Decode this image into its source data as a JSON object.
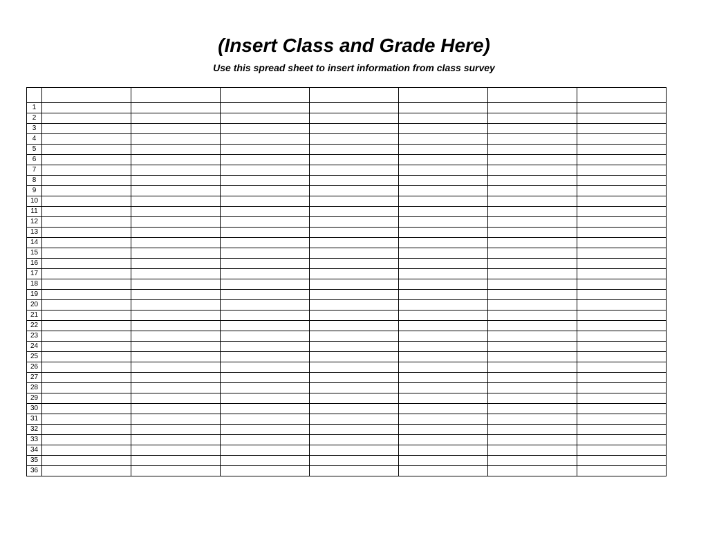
{
  "header": {
    "title": "(Insert Class and Grade Here)",
    "subtitle": "Use this spread sheet to insert information from class survey"
  },
  "table": {
    "type": "table",
    "num_columns": 7,
    "num_rows": 36,
    "header_row_height": 22,
    "data_row_height": 15,
    "num_col_width": 22,
    "data_col_width": 129,
    "border_color": "#000000",
    "background_color": "#ffffff",
    "text_color": "#000000",
    "row_number_fontsize": 10,
    "columns": [
      "",
      "",
      "",
      "",
      "",
      "",
      ""
    ],
    "rows": [
      {
        "num": 1,
        "cells": [
          "",
          "",
          "",
          "",
          "",
          "",
          ""
        ]
      },
      {
        "num": 2,
        "cells": [
          "",
          "",
          "",
          "",
          "",
          "",
          ""
        ]
      },
      {
        "num": 3,
        "cells": [
          "",
          "",
          "",
          "",
          "",
          "",
          ""
        ]
      },
      {
        "num": 4,
        "cells": [
          "",
          "",
          "",
          "",
          "",
          "",
          ""
        ]
      },
      {
        "num": 5,
        "cells": [
          "",
          "",
          "",
          "",
          "",
          "",
          ""
        ]
      },
      {
        "num": 6,
        "cells": [
          "",
          "",
          "",
          "",
          "",
          "",
          ""
        ]
      },
      {
        "num": 7,
        "cells": [
          "",
          "",
          "",
          "",
          "",
          "",
          ""
        ]
      },
      {
        "num": 8,
        "cells": [
          "",
          "",
          "",
          "",
          "",
          "",
          ""
        ]
      },
      {
        "num": 9,
        "cells": [
          "",
          "",
          "",
          "",
          "",
          "",
          ""
        ]
      },
      {
        "num": 10,
        "cells": [
          "",
          "",
          "",
          "",
          "",
          "",
          ""
        ]
      },
      {
        "num": 11,
        "cells": [
          "",
          "",
          "",
          "",
          "",
          "",
          ""
        ]
      },
      {
        "num": 12,
        "cells": [
          "",
          "",
          "",
          "",
          "",
          "",
          ""
        ]
      },
      {
        "num": 13,
        "cells": [
          "",
          "",
          "",
          "",
          "",
          "",
          ""
        ]
      },
      {
        "num": 14,
        "cells": [
          "",
          "",
          "",
          "",
          "",
          "",
          ""
        ]
      },
      {
        "num": 15,
        "cells": [
          "",
          "",
          "",
          "",
          "",
          "",
          ""
        ]
      },
      {
        "num": 16,
        "cells": [
          "",
          "",
          "",
          "",
          "",
          "",
          ""
        ]
      },
      {
        "num": 17,
        "cells": [
          "",
          "",
          "",
          "",
          "",
          "",
          ""
        ]
      },
      {
        "num": 18,
        "cells": [
          "",
          "",
          "",
          "",
          "",
          "",
          ""
        ]
      },
      {
        "num": 19,
        "cells": [
          "",
          "",
          "",
          "",
          "",
          "",
          ""
        ]
      },
      {
        "num": 20,
        "cells": [
          "",
          "",
          "",
          "",
          "",
          "",
          ""
        ]
      },
      {
        "num": 21,
        "cells": [
          "",
          "",
          "",
          "",
          "",
          "",
          ""
        ]
      },
      {
        "num": 22,
        "cells": [
          "",
          "",
          "",
          "",
          "",
          "",
          ""
        ]
      },
      {
        "num": 23,
        "cells": [
          "",
          "",
          "",
          "",
          "",
          "",
          ""
        ]
      },
      {
        "num": 24,
        "cells": [
          "",
          "",
          "",
          "",
          "",
          "",
          ""
        ]
      },
      {
        "num": 25,
        "cells": [
          "",
          "",
          "",
          "",
          "",
          "",
          ""
        ]
      },
      {
        "num": 26,
        "cells": [
          "",
          "",
          "",
          "",
          "",
          "",
          ""
        ]
      },
      {
        "num": 27,
        "cells": [
          "",
          "",
          "",
          "",
          "",
          "",
          ""
        ]
      },
      {
        "num": 28,
        "cells": [
          "",
          "",
          "",
          "",
          "",
          "",
          ""
        ]
      },
      {
        "num": 29,
        "cells": [
          "",
          "",
          "",
          "",
          "",
          "",
          ""
        ]
      },
      {
        "num": 30,
        "cells": [
          "",
          "",
          "",
          "",
          "",
          "",
          ""
        ]
      },
      {
        "num": 31,
        "cells": [
          "",
          "",
          "",
          "",
          "",
          "",
          ""
        ]
      },
      {
        "num": 32,
        "cells": [
          "",
          "",
          "",
          "",
          "",
          "",
          ""
        ]
      },
      {
        "num": 33,
        "cells": [
          "",
          "",
          "",
          "",
          "",
          "",
          ""
        ]
      },
      {
        "num": 34,
        "cells": [
          "",
          "",
          "",
          "",
          "",
          "",
          ""
        ]
      },
      {
        "num": 35,
        "cells": [
          "",
          "",
          "",
          "",
          "",
          "",
          ""
        ]
      },
      {
        "num": 36,
        "cells": [
          "",
          "",
          "",
          "",
          "",
          "",
          ""
        ]
      }
    ]
  },
  "styling": {
    "title_fontsize": 28,
    "subtitle_fontsize": 14,
    "title_color": "#000000",
    "subtitle_color": "#000000",
    "page_background": "#ffffff",
    "font_family": "Arial"
  }
}
